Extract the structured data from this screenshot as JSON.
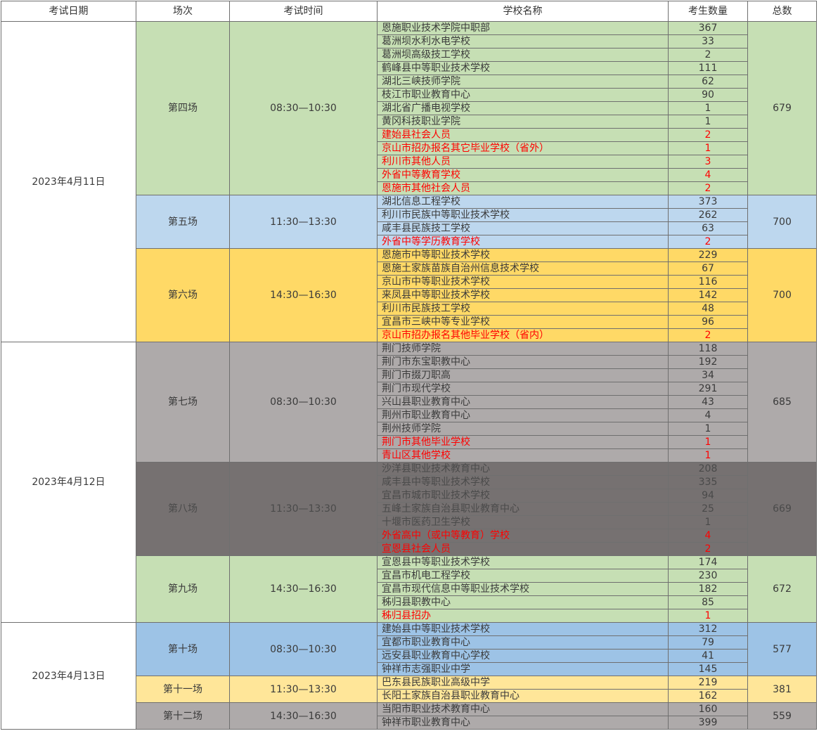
{
  "headers": [
    "考试日期",
    "场次",
    "考试时间",
    "学校名称",
    "考生数量",
    "总数"
  ],
  "colors": {
    "green": "#c6dfb4",
    "light_blue": "#bdd7ee",
    "yellow": "#ffd966",
    "grey": "#aeaaaa",
    "dark_grey": "#767171",
    "steel_blue": "#9dc3e6",
    "light_yellow": "#ffe699",
    "highlight_text": "#ff0000"
  },
  "dates": [
    {
      "date": "2023年4月11日",
      "sessions": [
        {
          "name": "第四场",
          "time": "08:30—10:30",
          "total": "679",
          "color": "c-green",
          "schools": [
            {
              "name": "恩施职业技术学院中职部",
              "count": "367",
              "red": false
            },
            {
              "name": "葛洲坝水利水电学校",
              "count": "33",
              "red": false
            },
            {
              "name": "葛洲坝高级技工学校",
              "count": "2",
              "red": false
            },
            {
              "name": "鹤峰县中等职业技术学校",
              "count": "111",
              "red": false
            },
            {
              "name": "湖北三峡技师学院",
              "count": "62",
              "red": false
            },
            {
              "name": "枝江市职业教育中心",
              "count": "90",
              "red": false
            },
            {
              "name": "湖北省广播电视学校",
              "count": "1",
              "red": false
            },
            {
              "name": "黄冈科技职业学院",
              "count": "1",
              "red": false
            },
            {
              "name": "建始县社会人员",
              "count": "2",
              "red": true
            },
            {
              "name": "京山市招办报名其它毕业学校（省外）",
              "count": "1",
              "red": true
            },
            {
              "name": "利川市其他人员",
              "count": "3",
              "red": true
            },
            {
              "name": "外省中等教育学校",
              "count": "4",
              "red": true
            },
            {
              "name": "恩施市其他社会人员",
              "count": "2",
              "red": true
            }
          ]
        },
        {
          "name": "第五场",
          "time": "11:30—13:30",
          "total": "700",
          "color": "c-blue",
          "schools": [
            {
              "name": "湖北信息工程学校",
              "count": "373",
              "red": false
            },
            {
              "name": "利川市民族中等职业技术学校",
              "count": "262",
              "red": false
            },
            {
              "name": "咸丰县民族技工学校",
              "count": "63",
              "red": false
            },
            {
              "name": "外省中等学历教育学校",
              "count": "2",
              "red": true
            }
          ]
        },
        {
          "name": "第六场",
          "time": "14:30—16:30",
          "total": "700",
          "color": "c-yellow",
          "schools": [
            {
              "name": "恩施市中等职业技术学校",
              "count": "229",
              "red": false
            },
            {
              "name": "恩施土家族苗族自治州信息技术学校",
              "count": "67",
              "red": false
            },
            {
              "name": "京山市中等职业技术学校",
              "count": "116",
              "red": false
            },
            {
              "name": "来凤县中等职业技术学校",
              "count": "142",
              "red": false
            },
            {
              "name": "利川市民族技工学校",
              "count": "48",
              "red": false
            },
            {
              "name": "宜昌市三峡中等专业学校",
              "count": "96",
              "red": false
            },
            {
              "name": "京山市招办报名其他毕业学校（省内）",
              "count": "2",
              "red": true
            }
          ]
        }
      ]
    },
    {
      "date": "2023年4月12日",
      "sessions": [
        {
          "name": "第七场",
          "time": "08:30—10:30",
          "total": "685",
          "color": "c-grey",
          "schools": [
            {
              "name": "荆门技师学院",
              "count": "118",
              "red": false
            },
            {
              "name": "荆门市东宝职教中心",
              "count": "192",
              "red": false
            },
            {
              "name": "荆门市掇刀职高",
              "count": "34",
              "red": false
            },
            {
              "name": "荆门市现代学校",
              "count": "291",
              "red": false
            },
            {
              "name": "兴山县职业教育中心",
              "count": "43",
              "red": false
            },
            {
              "name": "荆州市职业教育中心",
              "count": "4",
              "red": false
            },
            {
              "name": "荆州技师学院",
              "count": "1",
              "red": false
            },
            {
              "name": "荆门市其他毕业学校",
              "count": "1",
              "red": true
            },
            {
              "name": "青山区其他学校",
              "count": "1",
              "red": true
            }
          ]
        },
        {
          "name": "第八场",
          "time": "11:30—13:30",
          "total": "669",
          "color": "c-dgrey",
          "schools": [
            {
              "name": "沙洋县职业技术教育中心",
              "count": "208",
              "red": false
            },
            {
              "name": "咸丰县中等职业技术学校",
              "count": "335",
              "red": false
            },
            {
              "name": "宜昌市城市职业技术学校",
              "count": "94",
              "red": false
            },
            {
              "name": "五峰土家族自治县职业教育中心",
              "count": "25",
              "red": false
            },
            {
              "name": "十堰市医药卫生学校",
              "count": "1",
              "red": false
            },
            {
              "name": "外省高中（或中等教育）学校",
              "count": "4",
              "red": true
            },
            {
              "name": "宣恩县社会人员",
              "count": "2",
              "red": true
            }
          ]
        },
        {
          "name": "第九场",
          "time": "14:30—16:30",
          "total": "672",
          "color": "c-green",
          "schools": [
            {
              "name": "宣恩县中等职业技术学校",
              "count": "174",
              "red": false
            },
            {
              "name": "宜昌市机电工程学校",
              "count": "230",
              "red": false
            },
            {
              "name": "宜昌市现代信息中等职业技术学校",
              "count": "182",
              "red": false
            },
            {
              "name": "秭归县职教中心",
              "count": "85",
              "red": false
            },
            {
              "name": "秭归县招办",
              "count": "1",
              "red": true
            }
          ]
        }
      ]
    },
    {
      "date": "2023年4月13日",
      "sessions": [
        {
          "name": "第十场",
          "time": "08:30—10:30",
          "total": "577",
          "color": "c-sblue",
          "schools": [
            {
              "name": "建始县中等职业技术学校",
              "count": "312",
              "red": false
            },
            {
              "name": "宜都市职业教育中心",
              "count": "79",
              "red": false
            },
            {
              "name": "远安县职业教育中心学校",
              "count": "41",
              "red": false
            },
            {
              "name": "钟祥市志强职业中学",
              "count": "145",
              "red": false
            }
          ]
        },
        {
          "name": "第十一场",
          "time": "11:30—13:30",
          "total": "381",
          "color": "c-lyellow",
          "schools": [
            {
              "name": "巴东县民族职业高级中学",
              "count": "219",
              "red": false
            },
            {
              "name": "长阳土家族自治县职业教育中心",
              "count": "162",
              "red": false
            }
          ]
        },
        {
          "name": "第十二场",
          "time": "14:30—16:30",
          "total": "559",
          "color": "c-grey",
          "schools": [
            {
              "name": "当阳市职业技术教育中心",
              "count": "160",
              "red": false
            },
            {
              "name": "钟祥市职业教育中心",
              "count": "399",
              "red": false
            }
          ]
        }
      ]
    }
  ]
}
